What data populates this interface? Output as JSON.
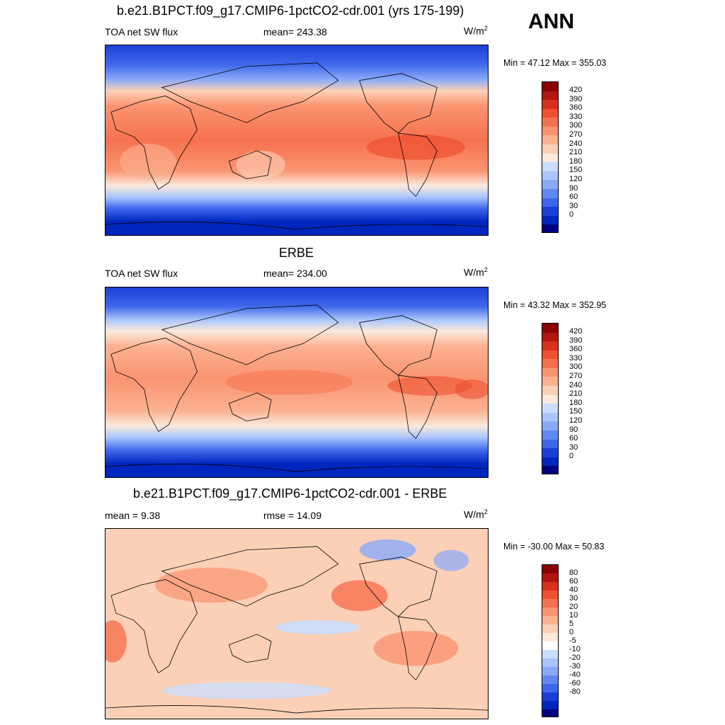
{
  "season": "ANN",
  "colors": {
    "abs_scale": [
      "#000080",
      "#0026c0",
      "#1b40d9",
      "#3f67eb",
      "#6288f4",
      "#8aaaf9",
      "#aac5fc",
      "#cadefe",
      "#fbe9dc",
      "#fcd0b7",
      "#fbb292",
      "#fa9470",
      "#f6714f",
      "#ee5030",
      "#d7301d",
      "#b4150f",
      "#8b0000"
    ],
    "diff_scale": [
      "#000080",
      "#0026c0",
      "#1b40d9",
      "#3f67eb",
      "#6288f4",
      "#8aaaf9",
      "#aac5fc",
      "#cadefe",
      "#ffffff",
      "#fbe9dc",
      "#fcd0b7",
      "#fbb292",
      "#fa9470",
      "#f6714f",
      "#ee5030",
      "#d7301d",
      "#b4150f",
      "#8b0000"
    ],
    "land_outline": "#000000"
  },
  "panels": [
    {
      "id": "model",
      "title": "b.e21.B1PCT.f09_g17.CMIP6-1pctCO2-cdr.001 (yrs 175-199)",
      "left_label": "TOA net SW flux",
      "center_label": "mean= 243.38",
      "unit_base": "W/m",
      "unit_exp": "2",
      "minmax": "Min =  47.12 Max = 355.03",
      "ticks": [
        "420",
        "390",
        "360",
        "330",
        "300",
        "270",
        "240",
        "210",
        "180",
        "150",
        "120",
        "90",
        "60",
        "30",
        "0"
      ]
    },
    {
      "id": "obs",
      "title": "ERBE",
      "left_label": "TOA net SW flux",
      "center_label": "mean= 234.00",
      "unit_base": "W/m",
      "unit_exp": "2",
      "minmax": "Min =  43.32 Max = 352.95",
      "ticks": [
        "420",
        "390",
        "360",
        "330",
        "300",
        "270",
        "240",
        "210",
        "180",
        "150",
        "120",
        "90",
        "60",
        "30",
        "0"
      ]
    },
    {
      "id": "diff",
      "title": "b.e21.B1PCT.f09_g17.CMIP6-1pctCO2-cdr.001 - ERBE",
      "left_label": "mean =   9.38",
      "center_label": "rmse =  14.09",
      "unit_base": "W/m",
      "unit_exp": "2",
      "minmax": "Min = -30.00 Max =  50.83",
      "ticks": [
        "80",
        "60",
        "40",
        "30",
        "20",
        "10",
        "5",
        "0",
        "-5",
        "-10",
        "-20",
        "-30",
        "-40",
        "-60",
        "-80"
      ]
    }
  ]
}
